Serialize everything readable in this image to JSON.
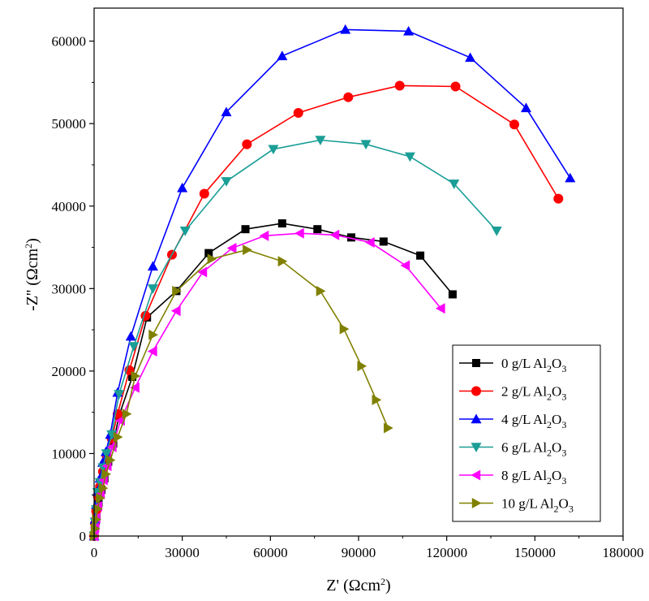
{
  "chart_data": {
    "type": "scatter",
    "xlabel": "Z' (Ωcm²)",
    "ylabel": "-Z'' (Ωcm²)",
    "xlim": [
      0,
      180000
    ],
    "ylim": [
      0,
      64000
    ],
    "xticks": [
      "0",
      "30000",
      "60000",
      "90000",
      "120000",
      "150000",
      "180000"
    ],
    "yticks": [
      "0",
      "10000",
      "20000",
      "30000",
      "40000",
      "50000",
      "60000"
    ],
    "grid": false,
    "legend_position": "bottom-right",
    "series": [
      {
        "name": "0 g/L Al2O3",
        "color": "#000000",
        "marker": "square",
        "points": [
          [
            0,
            0
          ],
          [
            400,
            1200
          ],
          [
            800,
            2500
          ],
          [
            1500,
            4000
          ],
          [
            2500,
            5600
          ],
          [
            3500,
            7000
          ],
          [
            4800,
            9000
          ],
          [
            6500,
            11200
          ],
          [
            8500,
            14600
          ],
          [
            13000,
            19300
          ],
          [
            18000,
            26500
          ],
          [
            28000,
            29700
          ],
          [
            39000,
            34300
          ],
          [
            51500,
            37200
          ],
          [
            64000,
            37900
          ],
          [
            76000,
            37200
          ],
          [
            87500,
            36200
          ],
          [
            98500,
            35700
          ],
          [
            111000,
            34000
          ],
          [
            122000,
            29300
          ]
        ]
      },
      {
        "name": "2 g/L Al2O3",
        "color": "#ff0000",
        "marker": "circle",
        "points": [
          [
            0,
            0
          ],
          [
            300,
            1500
          ],
          [
            700,
            3000
          ],
          [
            1300,
            4800
          ],
          [
            2000,
            6000
          ],
          [
            3000,
            7800
          ],
          [
            4300,
            9700
          ],
          [
            6000,
            11800
          ],
          [
            8000,
            14800
          ],
          [
            12000,
            20100
          ],
          [
            17500,
            26700
          ],
          [
            26500,
            34100
          ],
          [
            37500,
            41500
          ],
          [
            52000,
            47500
          ],
          [
            69500,
            51300
          ],
          [
            86500,
            53200
          ],
          [
            104000,
            54600
          ],
          [
            123000,
            54500
          ],
          [
            143000,
            49900
          ],
          [
            158000,
            40900
          ]
        ]
      },
      {
        "name": "4 g/L Al2O3",
        "color": "#0000ff",
        "marker": "triangle-up",
        "points": [
          [
            0,
            0
          ],
          [
            300,
            2000
          ],
          [
            700,
            3800
          ],
          [
            1200,
            5400
          ],
          [
            2000,
            7000
          ],
          [
            2900,
            8900
          ],
          [
            4000,
            10200
          ],
          [
            5500,
            12300
          ],
          [
            8000,
            17400
          ],
          [
            12500,
            24200
          ],
          [
            20000,
            32700
          ],
          [
            30000,
            42200
          ],
          [
            45000,
            51400
          ],
          [
            64000,
            58200
          ],
          [
            85500,
            61400
          ],
          [
            107000,
            61200
          ],
          [
            128000,
            58000
          ],
          [
            147000,
            51900
          ],
          [
            162000,
            43400
          ]
        ]
      },
      {
        "name": "6 g/L Al2O3",
        "color": "#1a9e96",
        "marker": "triangle-down",
        "points": [
          [
            0,
            0
          ],
          [
            300,
            1700
          ],
          [
            700,
            3200
          ],
          [
            1200,
            5300
          ],
          [
            2000,
            6500
          ],
          [
            3000,
            8300
          ],
          [
            4200,
            10000
          ],
          [
            6000,
            12300
          ],
          [
            8500,
            17200
          ],
          [
            13500,
            23000
          ],
          [
            20000,
            30000
          ],
          [
            31000,
            37000
          ],
          [
            45000,
            43000
          ],
          [
            61000,
            46900
          ],
          [
            77000,
            48000
          ],
          [
            92500,
            47500
          ],
          [
            107500,
            46000
          ],
          [
            122500,
            42700
          ],
          [
            137000,
            37000
          ]
        ]
      },
      {
        "name": "8 g/L Al2O3",
        "color": "#ff00ff",
        "marker": "triangle-left",
        "points": [
          [
            0,
            0
          ],
          [
            300,
            1000
          ],
          [
            700,
            2200
          ],
          [
            1300,
            3600
          ],
          [
            2200,
            5100
          ],
          [
            3200,
            6800
          ],
          [
            4500,
            8500
          ],
          [
            6200,
            10800
          ],
          [
            9000,
            14000
          ],
          [
            14000,
            18000
          ],
          [
            20000,
            22400
          ],
          [
            28000,
            27300
          ],
          [
            37000,
            32000
          ],
          [
            47000,
            34900
          ],
          [
            58000,
            36400
          ],
          [
            70000,
            36700
          ],
          [
            82000,
            36500
          ],
          [
            94000,
            35600
          ],
          [
            106000,
            32800
          ],
          [
            118000,
            27600
          ]
        ]
      },
      {
        "name": "10 g/L Al2O3",
        "color": "#808000",
        "marker": "triangle-right",
        "points": [
          [
            0,
            0
          ],
          [
            300,
            900
          ],
          [
            700,
            2000
          ],
          [
            1200,
            3300
          ],
          [
            2000,
            4600
          ],
          [
            3000,
            5800
          ],
          [
            4000,
            7500
          ],
          [
            5500,
            9200
          ],
          [
            8000,
            12000
          ],
          [
            11000,
            14800
          ],
          [
            14000,
            19400
          ],
          [
            20000,
            24400
          ],
          [
            28000,
            29700
          ],
          [
            40000,
            33600
          ],
          [
            52000,
            34700
          ],
          [
            64000,
            33300
          ],
          [
            77000,
            29700
          ],
          [
            85000,
            25100
          ],
          [
            91000,
            20600
          ],
          [
            96000,
            16500
          ],
          [
            100000,
            13100
          ]
        ]
      }
    ]
  }
}
